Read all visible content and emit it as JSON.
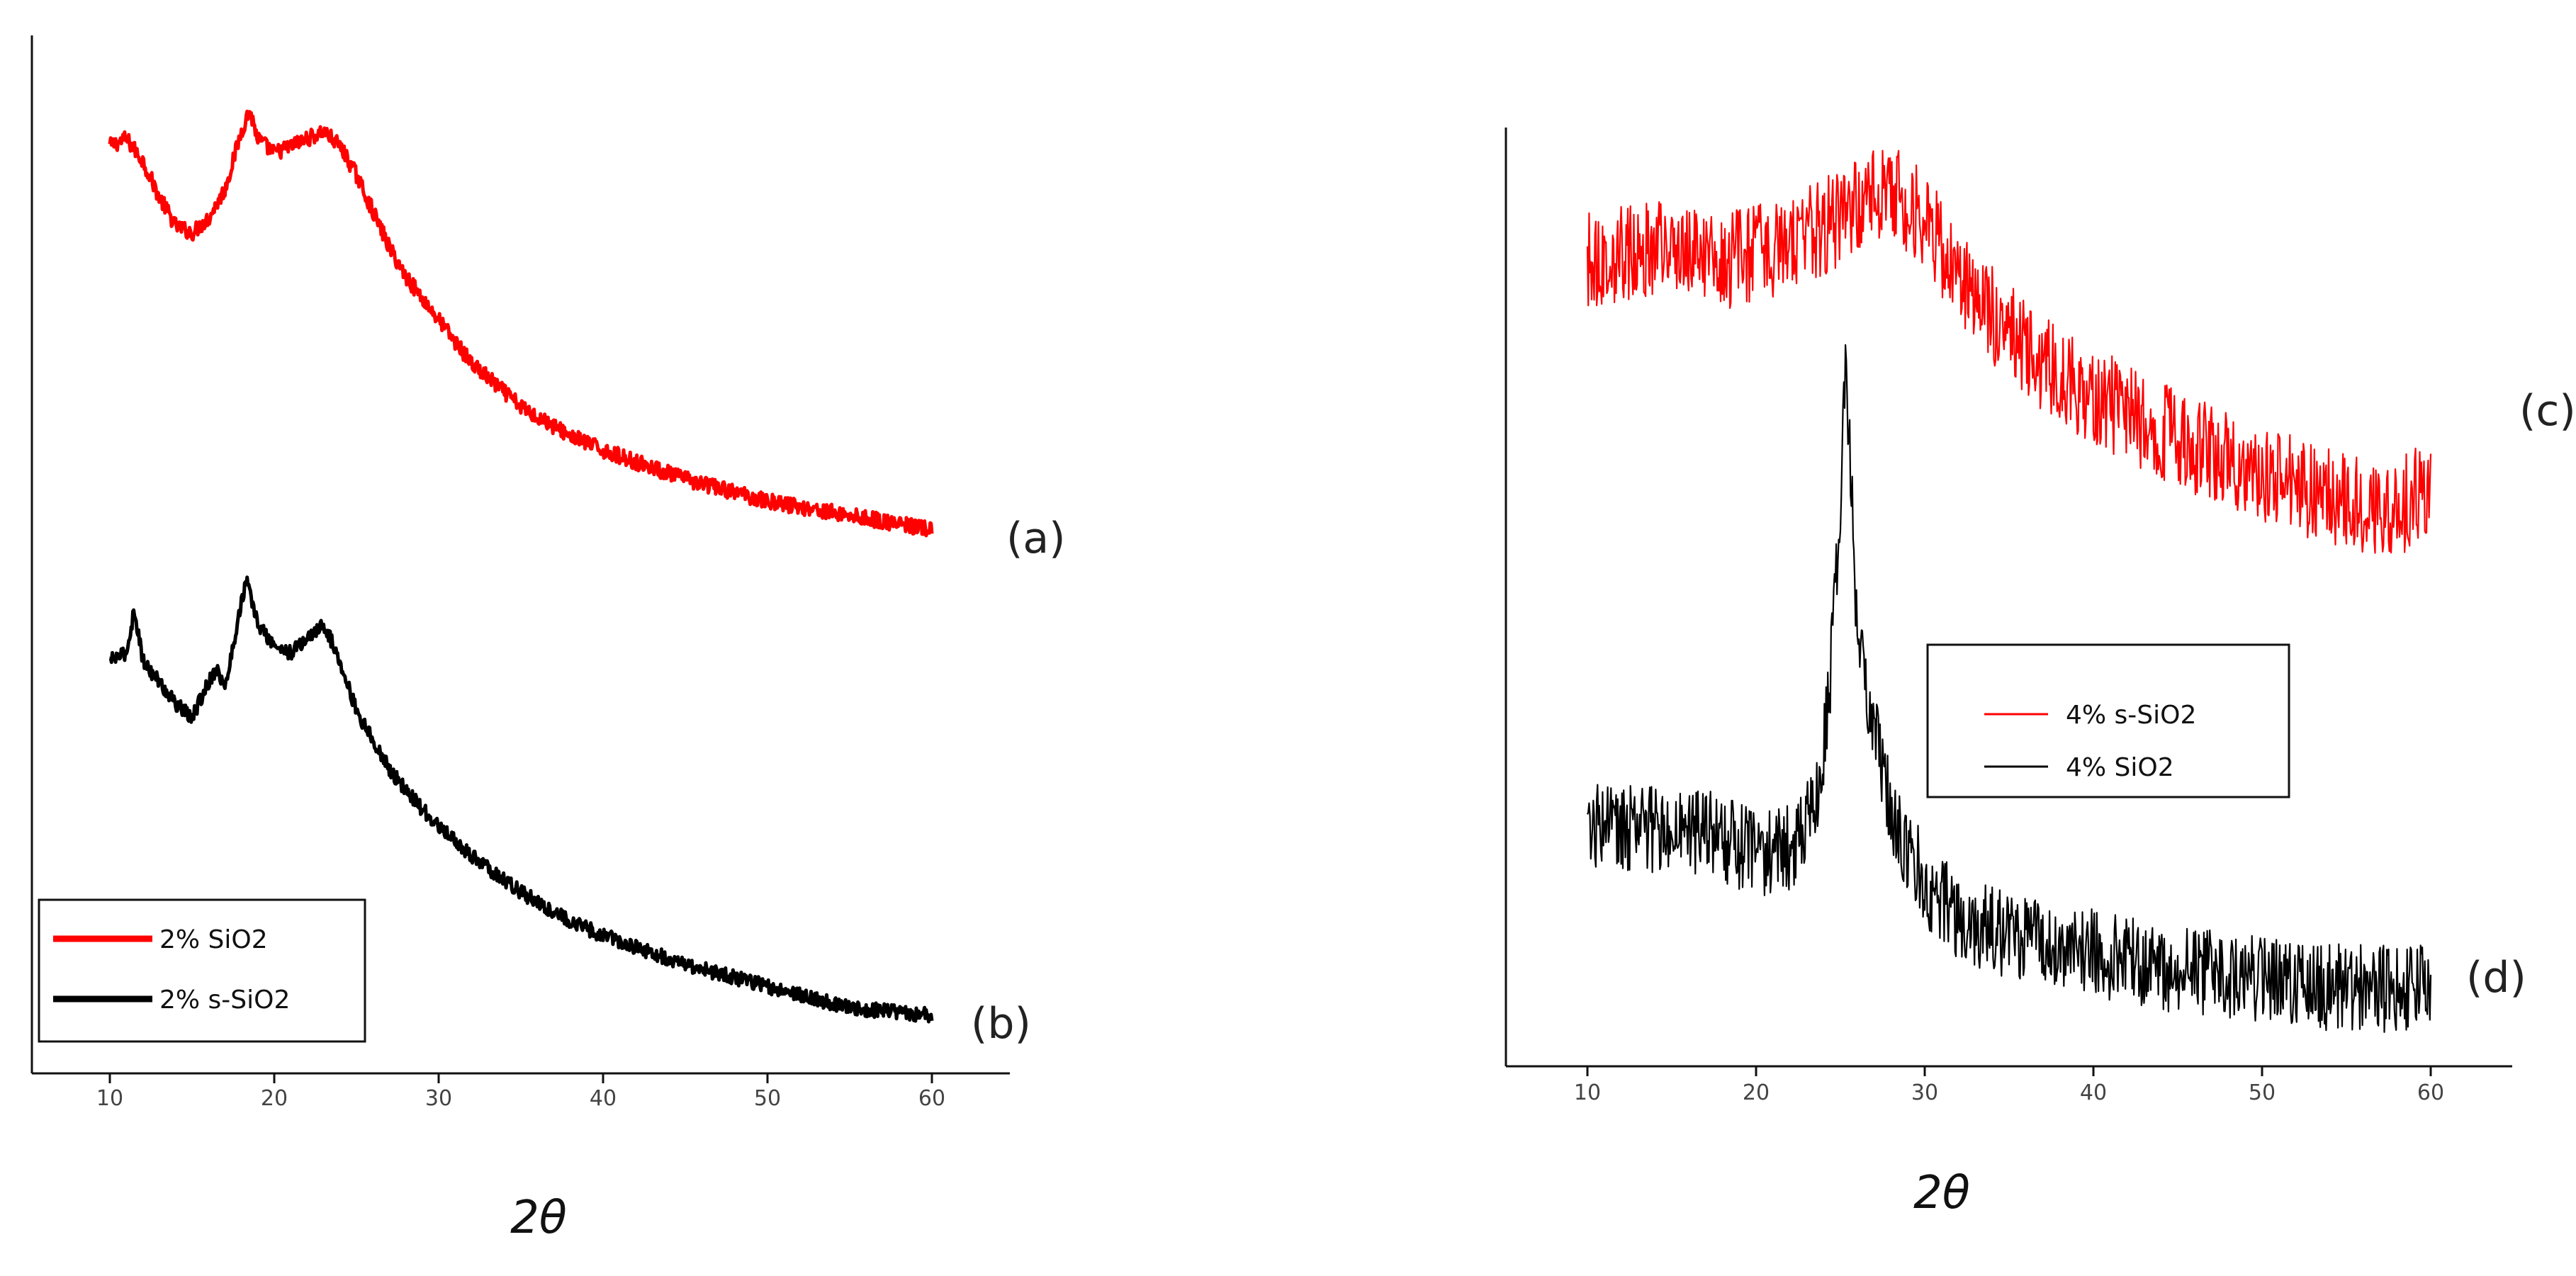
{
  "chart_data": [
    {
      "type": "line",
      "panel": "left",
      "xlabel": "2θ",
      "ylabel": "",
      "xlim": [
        5,
        65
      ],
      "xticks": [
        10,
        20,
        30,
        40,
        50,
        60
      ],
      "yticks_shown": false,
      "legend": {
        "placement": "bottom-left",
        "entries": [
          {
            "label": "2% SiO2",
            "color": "#ff0000"
          },
          {
            "label": "2% s-SiO2",
            "color": "#000000"
          }
        ]
      },
      "series": [
        {
          "name": "2% SiO2",
          "tag": "(a)",
          "color": "#ff0000",
          "noise": 1.1,
          "x": [
            10,
            11,
            12,
            13,
            14,
            15,
            16,
            17,
            18,
            18.5,
            19,
            20,
            21,
            22,
            23,
            24,
            25,
            26,
            27,
            28,
            30,
            32,
            35,
            38,
            40,
            45,
            50,
            55,
            60
          ],
          "y": [
            101,
            102,
            99,
            94,
            90,
            89,
            91,
            95,
            103,
            106,
            102,
            100,
            101,
            102,
            103,
            101,
            97,
            92,
            87,
            83,
            77,
            71,
            65,
            61,
            59,
            55,
            52,
            50,
            48
          ]
        },
        {
          "name": "2% s-SiO2",
          "tag": "(b)",
          "color": "#000000",
          "noise": 1.0,
          "x": [
            10,
            11,
            11.5,
            12,
            13,
            14,
            15,
            16,
            16.5,
            17,
            18,
            18.3,
            19,
            20,
            21,
            22,
            23,
            24,
            25,
            26,
            27,
            28,
            30,
            32,
            35,
            38,
            40,
            45,
            50,
            55,
            60
          ],
          "y": [
            30,
            31,
            37,
            30,
            27,
            24,
            22,
            27,
            29,
            26,
            38,
            41,
            35,
            32,
            31,
            33,
            35,
            30,
            23,
            19,
            15,
            12,
            7,
            3,
            -2,
            -6,
            -8,
            -12,
            -15,
            -18,
            -19
          ]
        }
      ]
    },
    {
      "type": "line",
      "panel": "right",
      "xlabel": "2θ",
      "ylabel": "",
      "xlim": [
        5,
        65
      ],
      "xticks": [
        10,
        20,
        30,
        40,
        50,
        60
      ],
      "yticks_shown": false,
      "legend": {
        "placement": "middle-right",
        "entries": [
          {
            "label": "4% s-SiO2",
            "color": "#ff0000"
          },
          {
            "label": "4% SiO2",
            "color": "#000000"
          }
        ]
      },
      "series": [
        {
          "name": "4% s-SiO2",
          "tag": "(c)",
          "color": "#ff0000",
          "noise": 5.5,
          "x": [
            10,
            12,
            15,
            18,
            20,
            22,
            25,
            27,
            28,
            30,
            32,
            35,
            38,
            40,
            45,
            50,
            55,
            58,
            60
          ],
          "y": [
            88,
            89,
            90,
            88,
            89,
            90,
            93,
            96,
            96,
            93,
            86,
            80,
            75,
            73,
            68,
            64,
            61,
            60,
            63
          ]
        },
        {
          "name": "4% SiO2",
          "tag": "(d)",
          "color": "#000000",
          "noise": 5.0,
          "x": [
            10,
            15,
            18,
            20,
            22,
            23,
            24,
            24.5,
            25,
            25.3,
            25.7,
            26,
            27,
            28,
            30,
            32,
            35,
            40,
            45,
            50,
            55,
            60
          ],
          "y": [
            24,
            24,
            23,
            21,
            22,
            24,
            32,
            44,
            60,
            77,
            60,
            46,
            36,
            26,
            18,
            14,
            12,
            10,
            8,
            7,
            6,
            6
          ]
        }
      ]
    }
  ]
}
